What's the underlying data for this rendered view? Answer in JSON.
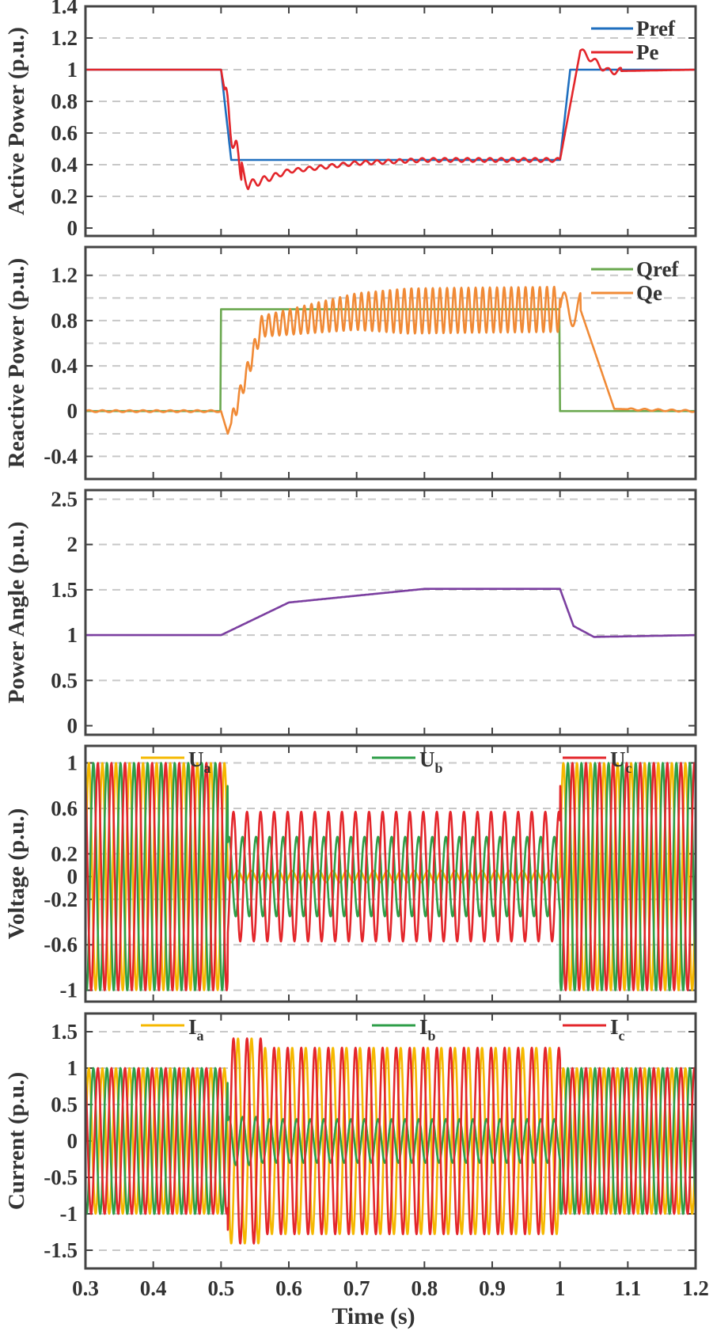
{
  "colors": {
    "blue": "#1f6fbf",
    "red": "#e3262b",
    "green": "#6aa84f",
    "orange": "#f08a36",
    "purple": "#7b3fa0",
    "yellow": "#f5b800",
    "green2": "#2e9e48",
    "axis": "#444444",
    "grid": "#c8c8c8"
  },
  "xlabel": "Time (s)",
  "x_ticks": [
    "0.3",
    "0.4",
    "0.5",
    "0.6",
    "0.7",
    "0.8",
    "0.9",
    "1",
    "1.1",
    "1.2"
  ],
  "chart_data": [
    {
      "type": "line",
      "title": "",
      "ylabel": "Active Power (p.u.)",
      "xlim": [
        0.3,
        1.2
      ],
      "ylim": [
        -0.05,
        1.4
      ],
      "yticks": [
        0,
        0.2,
        0.4,
        0.6,
        0.8,
        1,
        1.2,
        1.4
      ],
      "ytick_labels": [
        "0",
        "0.2",
        "0.4",
        "0.6",
        "0.8",
        "1",
        "1.2",
        "1.4"
      ],
      "grid": [
        0.2,
        0.4,
        0.6,
        0.8,
        1,
        1.2
      ],
      "legend_position": "top-right",
      "series": [
        {
          "name": "Pref",
          "color": "blue",
          "kind": "pref",
          "points": [
            [
              0.3,
              1
            ],
            [
              0.5,
              1
            ],
            [
              0.515,
              0.43
            ],
            [
              1.0,
              0.43
            ],
            [
              1.015,
              1
            ],
            [
              1.2,
              1
            ]
          ]
        },
        {
          "name": "Pe",
          "color": "red",
          "kind": "pe",
          "points": [
            [
              0.3,
              1
            ],
            [
              0.5,
              1
            ],
            [
              0.52,
              0.5
            ],
            [
              0.54,
              0.27
            ],
            [
              0.6,
              0.36
            ],
            [
              0.7,
              0.41
            ],
            [
              0.8,
              0.43
            ],
            [
              1.0,
              0.43
            ],
            [
              1.03,
              1.12
            ],
            [
              1.07,
              0.99
            ],
            [
              1.2,
              1
            ]
          ]
        }
      ]
    },
    {
      "type": "line",
      "title": "",
      "ylabel": "Reactive Power (p.u.)",
      "xlim": [
        0.3,
        1.2
      ],
      "ylim": [
        -0.6,
        1.45
      ],
      "yticks": [
        -0.4,
        0,
        0.4,
        0.8,
        1.2
      ],
      "ytick_labels": [
        "-0.4",
        "0",
        "0.4",
        "0.8",
        "1.2"
      ],
      "grid": [
        -0.4,
        -0.2,
        0.2,
        0.4,
        0.6,
        0.8,
        1.0,
        1.2
      ],
      "legend_position": "top-right",
      "series": [
        {
          "name": "Qref",
          "color": "green",
          "kind": "qref",
          "points": [
            [
              0.3,
              0
            ],
            [
              0.5,
              0
            ],
            [
              0.5,
              0.9
            ],
            [
              1.0,
              0.9
            ],
            [
              1.0,
              0
            ],
            [
              1.2,
              0
            ]
          ]
        },
        {
          "name": "Qe",
          "color": "orange",
          "kind": "qe",
          "points": [
            [
              0.3,
              0
            ],
            [
              0.5,
              0
            ],
            [
              0.51,
              -0.2
            ],
            [
              0.56,
              0.75
            ],
            [
              0.7,
              0.88
            ],
            [
              1.0,
              0.9
            ],
            [
              1.03,
              0.9
            ],
            [
              1.08,
              0.02
            ],
            [
              1.2,
              0
            ]
          ]
        }
      ]
    },
    {
      "type": "line",
      "title": "",
      "ylabel": "Power Angle (p.u.)",
      "xlim": [
        0.3,
        1.2
      ],
      "ylim": [
        -0.1,
        2.6
      ],
      "yticks": [
        0,
        0.5,
        1,
        1.5,
        2,
        2.5
      ],
      "ytick_labels": [
        "0",
        "0.5",
        "1",
        "1.5",
        "2",
        "2.5"
      ],
      "grid": [
        0.5,
        1,
        1.5,
        2,
        2.5
      ],
      "legend_position": "none",
      "series": [
        {
          "name": "Power Angle",
          "color": "purple",
          "kind": "angle",
          "points": [
            [
              0.3,
              1
            ],
            [
              0.5,
              1
            ],
            [
              0.6,
              1.36
            ],
            [
              0.8,
              1.51
            ],
            [
              1.0,
              1.51
            ],
            [
              1.02,
              1.1
            ],
            [
              1.05,
              0.98
            ],
            [
              1.2,
              1
            ]
          ]
        }
      ]
    },
    {
      "type": "line",
      "title": "",
      "ylabel": "Voltage (p.u.)",
      "xlim": [
        0.3,
        1.2
      ],
      "ylim": [
        -1.1,
        1.15
      ],
      "yticks": [
        -1,
        -0.6,
        -0.2,
        0,
        0.2,
        0.6,
        1
      ],
      "ytick_labels": [
        "-1",
        "-0.6",
        "-0.2",
        "0",
        "0.2",
        "0.6",
        "1"
      ],
      "grid": [
        -1,
        -0.6,
        -0.2,
        0.2,
        0.6,
        1
      ],
      "legend_position": "top",
      "amplitude_normal": [
        1,
        1,
        1
      ],
      "amplitude_fault": [
        0.05,
        0.35,
        0.57
      ],
      "fault_window": [
        0.5,
        1.0
      ],
      "frequency_hz": 50,
      "series": [
        {
          "name": "U",
          "sub": "a",
          "color": "yellow"
        },
        {
          "name": "U",
          "sub": "b",
          "color": "green2"
        },
        {
          "name": "U",
          "sub": "c",
          "color": "red"
        }
      ]
    },
    {
      "type": "line",
      "title": "",
      "ylabel": "Current (p.u.)",
      "xlim": [
        0.3,
        1.2
      ],
      "ylim": [
        -1.75,
        1.75
      ],
      "yticks": [
        -1.5,
        -1,
        -0.5,
        0,
        0.5,
        1,
        1.5
      ],
      "ytick_labels": [
        "-1.5",
        "-1",
        "-0.5",
        "0",
        "0.5",
        "1",
        "1.5"
      ],
      "grid": [
        -1.5,
        -1,
        -0.5,
        0.5,
        1,
        1.5
      ],
      "legend_position": "top",
      "amplitude_normal": [
        1,
        1,
        1
      ],
      "amplitude_fault": [
        1.28,
        0.3,
        1.28
      ],
      "fault_window": [
        0.5,
        1.0
      ],
      "frequency_hz": 50,
      "series": [
        {
          "name": "I",
          "sub": "a",
          "color": "yellow"
        },
        {
          "name": "I",
          "sub": "b",
          "color": "green2"
        },
        {
          "name": "I",
          "sub": "c",
          "color": "red"
        }
      ]
    }
  ]
}
